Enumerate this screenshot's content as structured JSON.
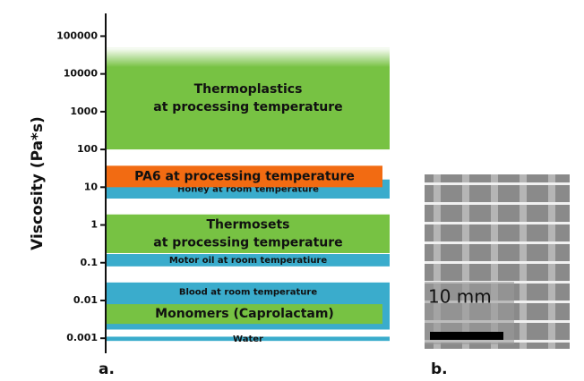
{
  "chart_data": {
    "type": "range-bar",
    "ylabel": "Viscosity (Pa*s)",
    "log_scale": true,
    "ylim": [
      0.0004,
      400000
    ],
    "yticks": [
      0.001,
      0.01,
      0.1,
      1,
      10,
      100,
      1000,
      10000,
      100000
    ],
    "bars": [
      {
        "label": [
          "Thermoplastics",
          "at processing temperature"
        ],
        "low": 100,
        "high": 50000,
        "color": "#77c243"
      },
      {
        "label": [
          "Honey at room temperature"
        ],
        "low": 5,
        "high": 16,
        "color": "#3aaccc"
      },
      {
        "label": [
          "PA6 at processing temperature"
        ],
        "low": 10,
        "high": 37,
        "color": "#f26b12"
      },
      {
        "label": [
          "Thermosets",
          "at processing temperature"
        ],
        "low": 0.18,
        "high": 1.9,
        "color": "#77c243"
      },
      {
        "label": [
          "Motor oil at room temperatiure"
        ],
        "low": 0.08,
        "high": 0.17,
        "color": "#3aaccc"
      },
      {
        "label": [
          "Blood at room temperature"
        ],
        "low": 0.0017,
        "high": 0.03,
        "color": "#3aaccc"
      },
      {
        "label": [
          "Monomers (Caprolactam)"
        ],
        "low": 0.0024,
        "high": 0.008,
        "color": "#77c243"
      },
      {
        "label": [
          "Water"
        ],
        "low": 0.00085,
        "high": 0.0011,
        "color": "#3aaccc"
      }
    ]
  },
  "panels": {
    "a": "a.",
    "b": "b."
  },
  "scale_bar": "10 mm"
}
